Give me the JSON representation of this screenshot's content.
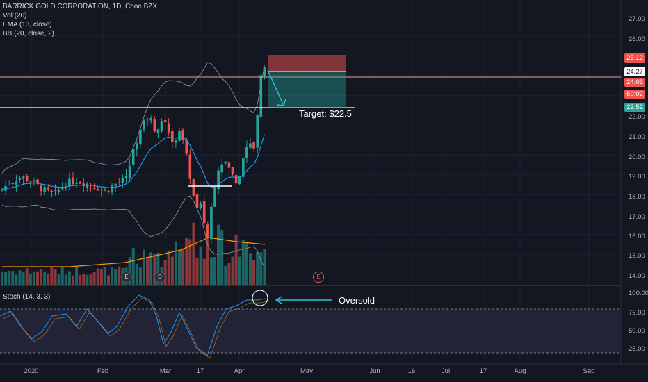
{
  "header": {
    "symbol_line": "BARRICK GOLD CORPORATION, 1D, Cboe BZX",
    "indicators": [
      "Vol (20)",
      "EMA (13, close)",
      "BB (20, close, 2)"
    ]
  },
  "price_axis": {
    "ticks": [
      "27.00",
      "26.00",
      "22.00",
      "21.00",
      "20.00",
      "19.00",
      "18.00",
      "17.00",
      "16.00",
      "15.00",
      "14.00"
    ],
    "badges": [
      {
        "label": "25.12",
        "color": "#ef5350"
      },
      {
        "label": "24.27",
        "color": "#ffffff"
      },
      {
        "label": "24.03",
        "color": "#ef5350"
      },
      {
        "label": "50:02",
        "color": "#ef5350"
      },
      {
        "label": "22.52",
        "color": "#26a69a"
      }
    ]
  },
  "annotations": {
    "target": "Target: $22.5",
    "oversold": "Oversold"
  },
  "events": [
    "E",
    "D",
    "E"
  ],
  "stoch": {
    "label": "Stoch (14, 3, 3)",
    "ticks": [
      "100.00",
      "75.00",
      "50.00",
      "25.00"
    ]
  },
  "time_axis": {
    "labels": [
      "2020",
      "Feb",
      "Mar",
      "17",
      "Apr",
      "May",
      "Jun",
      "16",
      "Jul",
      "17",
      "Aug",
      "Sep"
    ]
  },
  "colors": {
    "background": "#131722",
    "up": "#26a69a",
    "down": "#ef5350",
    "ema": "#2196f3",
    "volume_ma": "#ff9800",
    "stop_zone": "#ef5350",
    "target_zone": "#26a69a"
  }
}
